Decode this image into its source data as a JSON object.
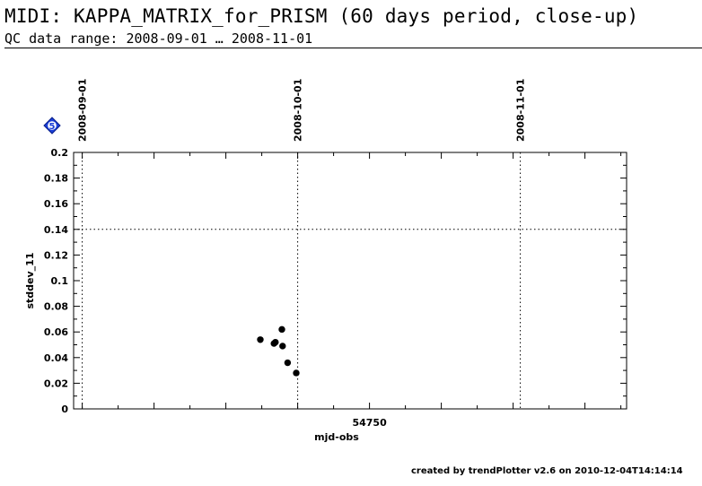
{
  "header": {
    "title": "MIDI: KAPPA_MATRIX_for_PRISM (60 days period, close-up)",
    "subtitle": "QC data range: 2008-09-01 … 2008-11-01"
  },
  "footer": {
    "credit": "created by trendPlotter v2.6 on 2010-12-04T14:14:14"
  },
  "badge": {
    "text": "5",
    "color": "#1a3fd6"
  },
  "chart_data": {
    "type": "scatter",
    "xlabel": "mjd-obs",
    "ylabel": "stddev_11",
    "xlim": [
      54708.8,
      54785.8
    ],
    "ylim": [
      0,
      0.2
    ],
    "x_tick_labels": [
      {
        "x": 54750,
        "label": "54750"
      }
    ],
    "y_ticks": [
      0,
      0.02,
      0.04,
      0.06,
      0.08,
      0.1,
      0.12,
      0.14,
      0.16,
      0.18,
      0.2
    ],
    "y_tick_labels": [
      "0",
      "0.02",
      "0.04",
      "0.06",
      "0.08",
      "0.1",
      "0.12",
      "0.14",
      "0.16",
      "0.18",
      "0.2"
    ],
    "date_markers": [
      {
        "x": 54710,
        "label": "2008-09-01"
      },
      {
        "x": 54740,
        "label": "2008-10-01"
      },
      {
        "x": 54771,
        "label": "2008-11-01"
      }
    ],
    "reference_line": {
      "y": 0.14,
      "style": "dotted"
    },
    "series": [
      {
        "points": [
          {
            "x": 54734.8,
            "y": 0.054
          },
          {
            "x": 54736.7,
            "y": 0.051
          },
          {
            "x": 54736.9,
            "y": 0.052
          },
          {
            "x": 54737.8,
            "y": 0.062
          },
          {
            "x": 54737.9,
            "y": 0.049
          },
          {
            "x": 54738.6,
            "y": 0.036
          },
          {
            "x": 54739.8,
            "y": 0.028
          }
        ]
      }
    ],
    "grid": false
  }
}
